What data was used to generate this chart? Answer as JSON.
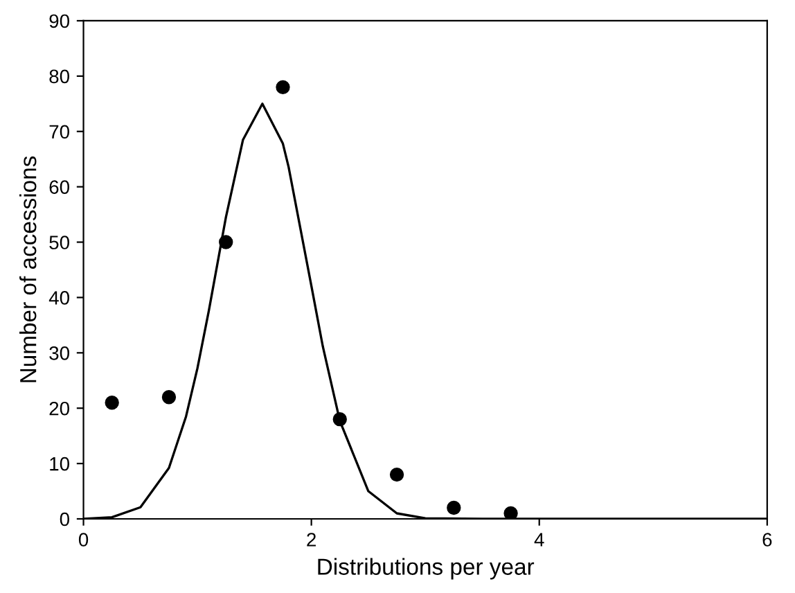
{
  "chart_data": {
    "type": "scatter",
    "xlabel": "Distributions per year",
    "ylabel": "Number of accessions",
    "xlim": [
      0,
      6
    ],
    "xticks": [
      0,
      2,
      4,
      6
    ],
    "ylim": [
      0,
      90
    ],
    "yticks": [
      0,
      10,
      20,
      30,
      40,
      50,
      60,
      70,
      80,
      90
    ],
    "grid": false,
    "series": [
      {
        "color": "#000000",
        "marker": "circle",
        "x": [
          0.25,
          0.75,
          1.25,
          1.75,
          2.25,
          2.75,
          3.25,
          3.75
        ],
        "values": [
          21,
          22,
          50,
          78,
          18,
          8,
          2,
          1
        ]
      },
      {
        "type": "line",
        "color": "#000000",
        "marker": "none",
        "line_style": "solid",
        "x": [
          0,
          0.25,
          0.5,
          0.75,
          0.9,
          1.0,
          1.1,
          1.25,
          1.4,
          1.57,
          1.75,
          1.8,
          2.0,
          2.1,
          2.25,
          2.5,
          2.75,
          3.0,
          3.5,
          4.0,
          5.0,
          6.0
        ],
        "values": [
          0.0,
          0.3,
          2.1,
          9.2,
          18.5,
          27.2,
          37.6,
          54.5,
          68.5,
          75,
          67.8,
          63.6,
          42.1,
          31.2,
          17.7,
          5.0,
          1.0,
          0.1,
          0,
          0,
          0,
          0
        ]
      }
    ]
  }
}
